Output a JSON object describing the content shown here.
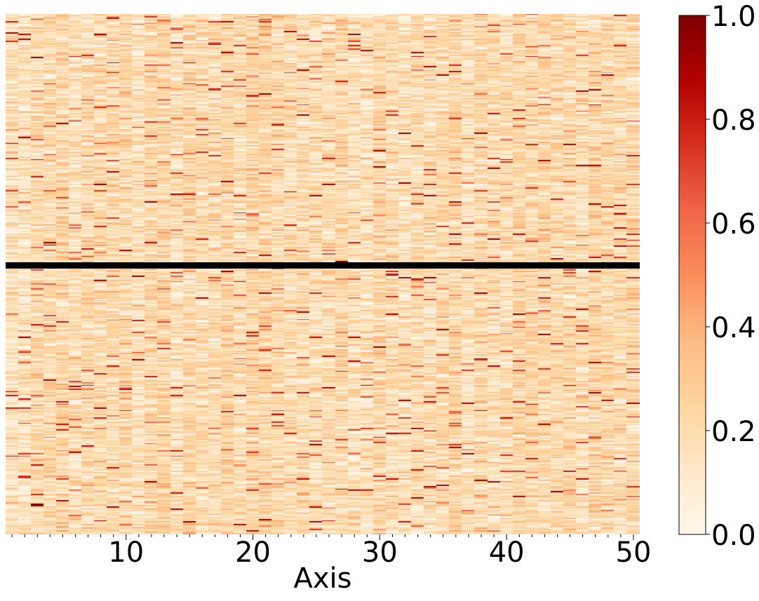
{
  "chart_data": {
    "type": "heatmap",
    "title": "",
    "xlabel": "Axis",
    "ylabel": "",
    "x_range": [
      1,
      50
    ],
    "x_ticks": [
      10,
      20,
      30,
      40,
      50
    ],
    "x_tick_labels": [
      "10",
      "20",
      "30",
      "40",
      "50"
    ],
    "rows_above_separator": 200,
    "rows_below_separator": 210,
    "value_range": [
      0,
      1
    ],
    "typical_value": 0.2,
    "colormap": "OrRd",
    "colormap_stops": [
      "#fff7ec",
      "#fee8c8",
      "#fdd49e",
      "#fdbb84",
      "#fc8d59",
      "#ef6548",
      "#d7301f",
      "#b30000",
      "#7f0000"
    ],
    "separator_color": "#000000",
    "colorbar": {
      "min": 0,
      "max": 1,
      "ticks": [
        0.0,
        0.2,
        0.4,
        0.6,
        0.8,
        1.0
      ],
      "tick_labels": [
        "0.0",
        "0.2",
        "0.4",
        "0.6",
        "0.8",
        "1.0"
      ]
    }
  }
}
